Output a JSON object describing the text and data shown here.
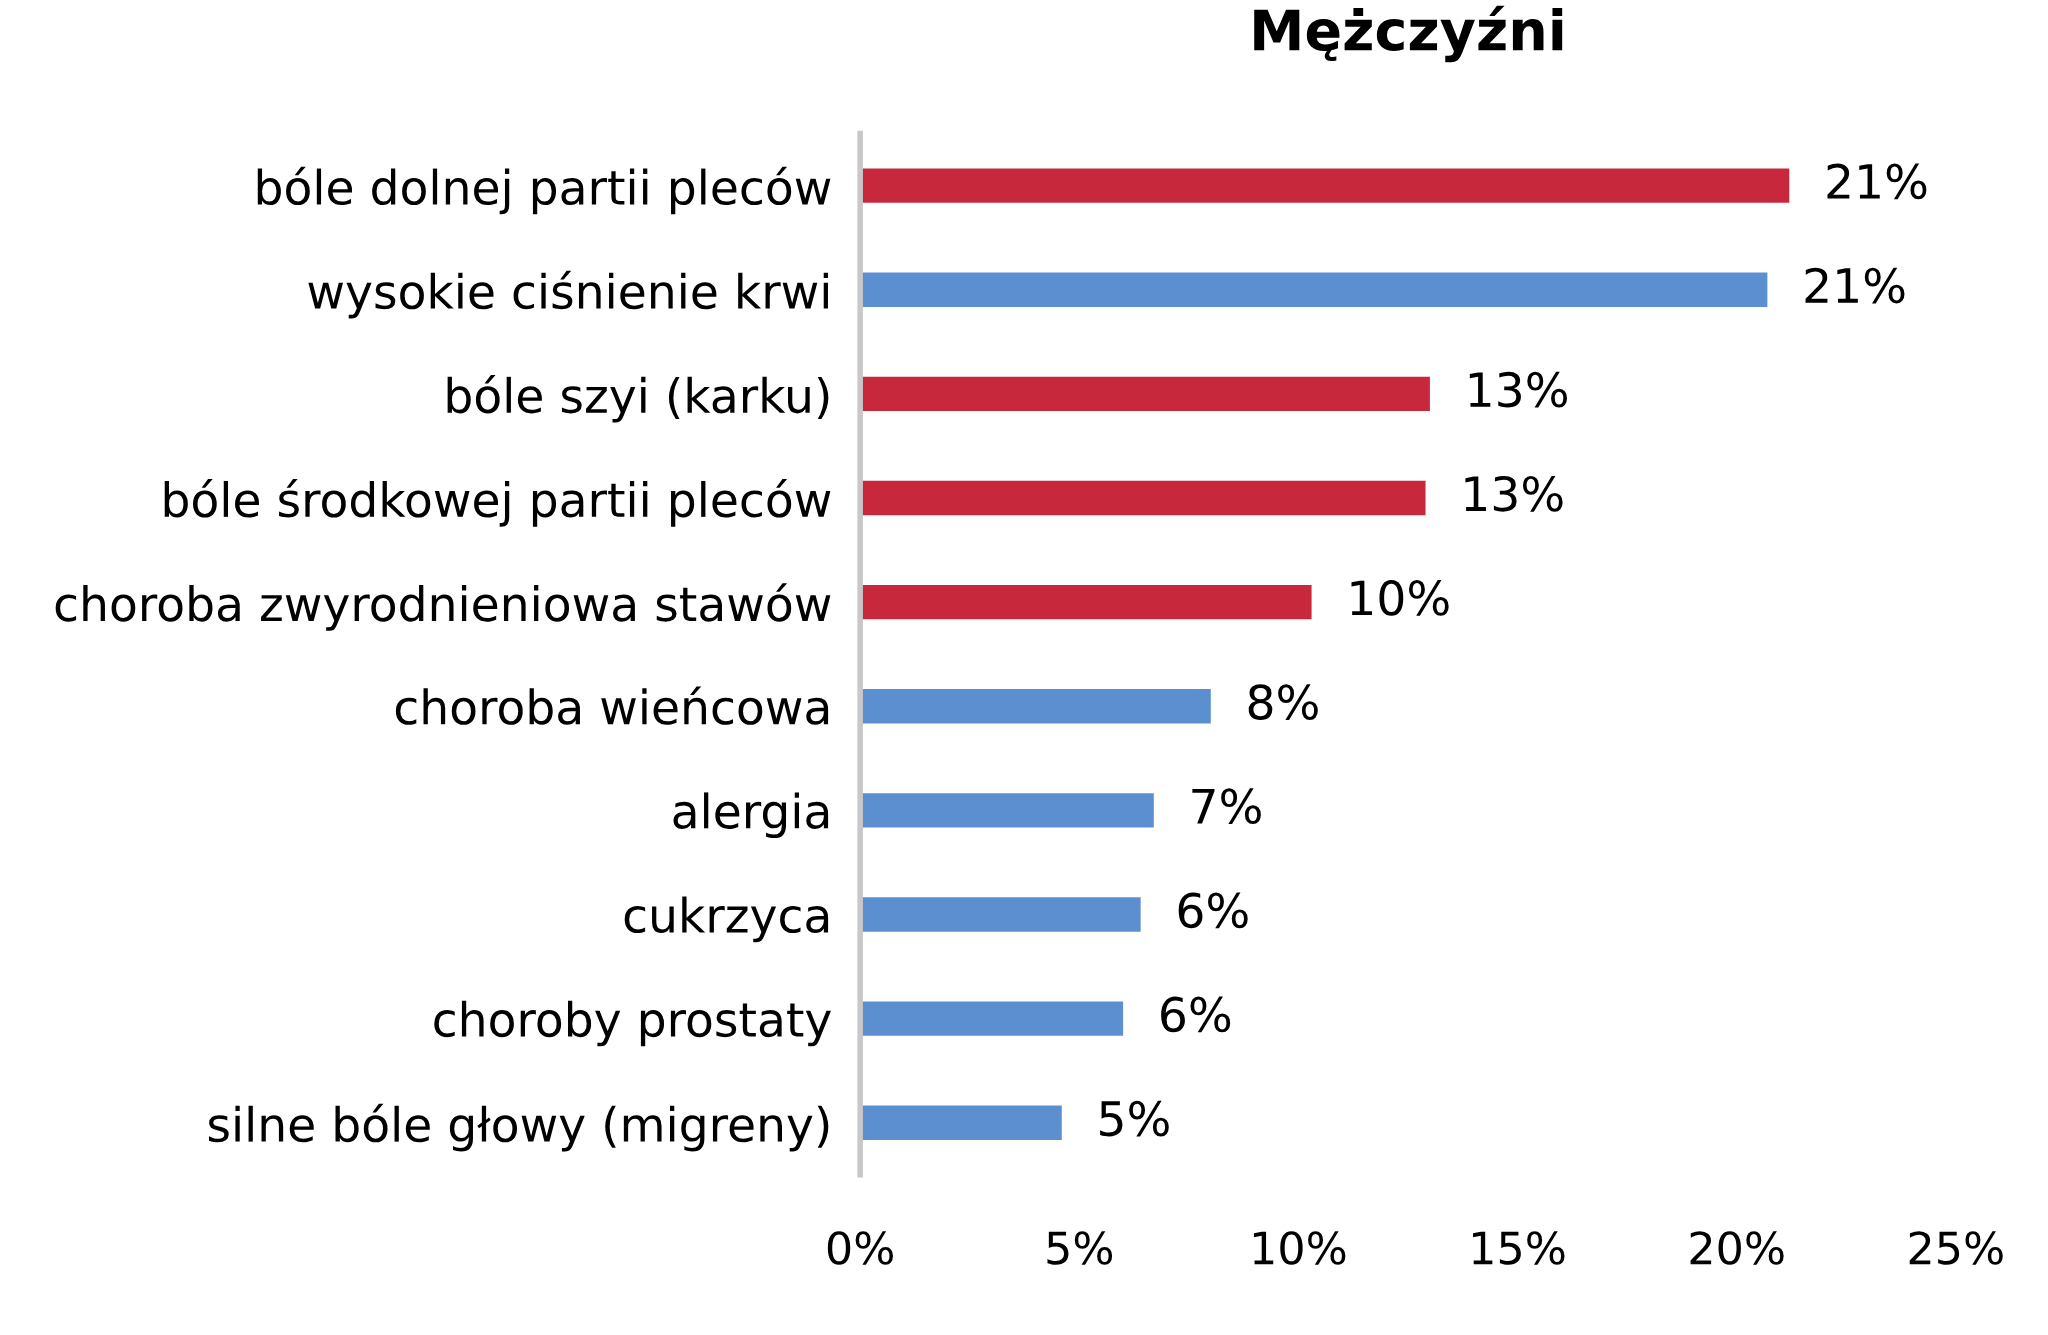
{
  "chart_data": {
    "type": "bar",
    "orientation": "horizontal",
    "title": "Mężczyźni",
    "categories": [
      "bóle dolnej partii pleców",
      "wysokie ciśnienie krwi",
      "bóle szyi (karku)",
      "bóle środkowej partii pleców",
      "choroba zwyrodnieniowa stawów",
      "choroba wieńcowa",
      "alergia",
      "cukrzyca",
      "choroby prostaty",
      "silne bóle głowy (migreny)"
    ],
    "values": [
      21.2,
      20.7,
      13.0,
      12.9,
      10.3,
      8.0,
      6.7,
      6.4,
      6.0,
      4.6
    ],
    "value_labels": [
      "21%",
      "21%",
      "13%",
      "13%",
      "10%",
      "8%",
      "7%",
      "6%",
      "6%",
      "5%"
    ],
    "colors": [
      "#c8283c",
      "#5b8fd0",
      "#c8283c",
      "#c8283c",
      "#c8283c",
      "#5b8fd0",
      "#5b8fd0",
      "#5b8fd0",
      "#5b8fd0",
      "#5b8fd0"
    ],
    "xlim": [
      0,
      25
    ],
    "xticks": [
      {
        "value": 0,
        "label": "0%"
      },
      {
        "value": 5,
        "label": "5%"
      },
      {
        "value": 10,
        "label": "10%"
      },
      {
        "value": 15,
        "label": "15%"
      },
      {
        "value": 20,
        "label": "20%"
      },
      {
        "value": 25,
        "label": "25%"
      }
    ],
    "grid": false,
    "legend": false
  }
}
